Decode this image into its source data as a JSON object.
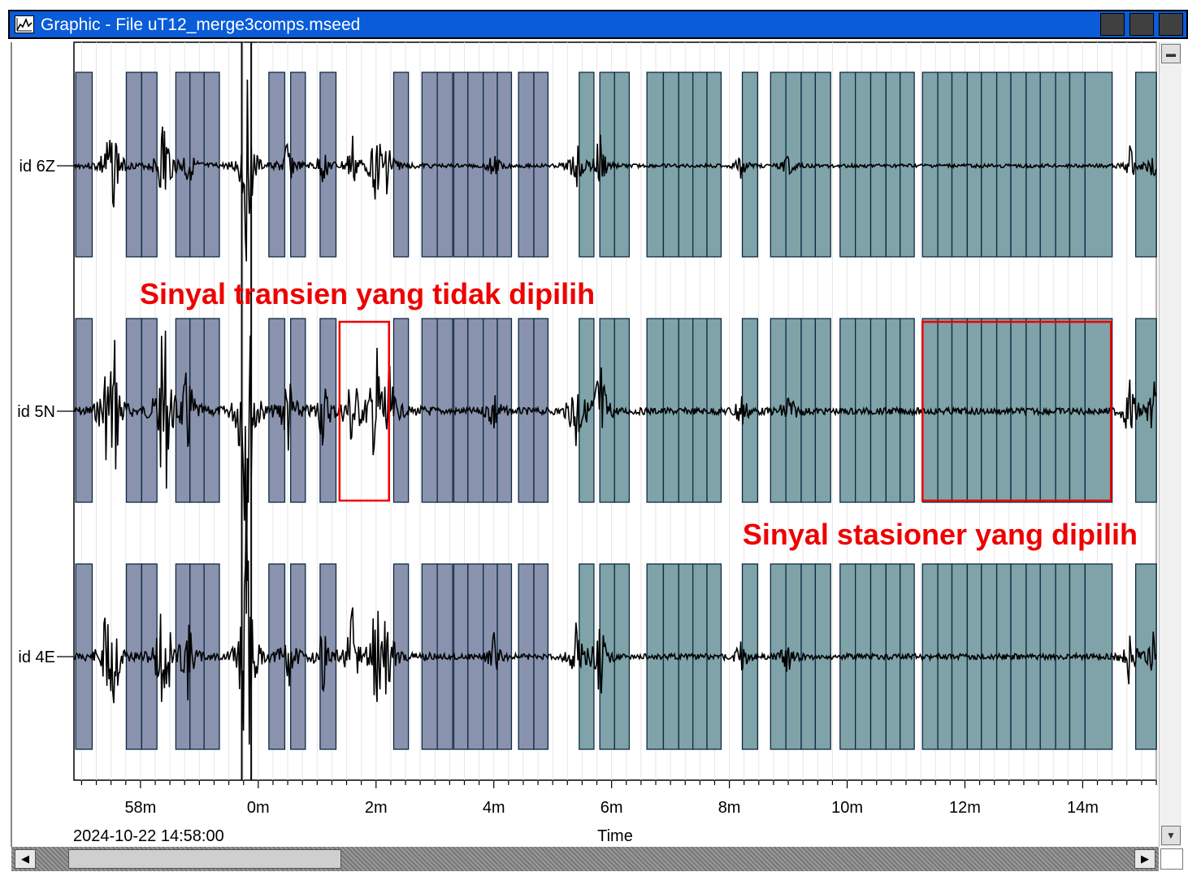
{
  "window": {
    "title": "Graphic - File uT12_merge3comps.mseed"
  },
  "plot": {
    "traces": [
      {
        "label": "id 6Z",
        "amp": 1.0,
        "seed": 3
      },
      {
        "label": "id 5N",
        "amp": 1.9,
        "seed": 7
      },
      {
        "label": "id 4E",
        "amp": 1.6,
        "seed": 11
      }
    ],
    "x_axis": {
      "title": "Time",
      "start_label": "2024-10-22 14:58:00",
      "ticks": [
        "58m",
        "0m",
        "2m",
        "4m",
        "6m",
        "8m",
        "10m",
        "12m",
        "14m"
      ],
      "tick_minutes": [
        -2,
        0,
        2,
        4,
        6,
        8,
        10,
        12,
        14
      ],
      "range_minutes": [
        -3.13,
        15.25
      ]
    },
    "window_colors": {
      "early": "#8a93ae",
      "late": "#7fa3a8",
      "edge": "#0d2a45"
    },
    "time_windows": [
      [
        -3.1,
        -2.82
      ],
      [
        -2.24,
        -1.98
      ],
      [
        -1.98,
        -1.72
      ],
      [
        -1.4,
        -1.16
      ],
      [
        -1.16,
        -0.92
      ],
      [
        -0.92,
        -0.66
      ],
      [
        0.18,
        0.45
      ],
      [
        0.55,
        0.8
      ],
      [
        1.05,
        1.32
      ],
      [
        2.3,
        2.55
      ],
      [
        2.78,
        3.04
      ],
      [
        3.04,
        3.3
      ],
      [
        3.32,
        3.56
      ],
      [
        3.56,
        3.82
      ],
      [
        3.82,
        4.06
      ],
      [
        4.06,
        4.3
      ],
      [
        4.42,
        4.68
      ],
      [
        4.68,
        4.92
      ],
      [
        5.45,
        5.7
      ],
      [
        5.8,
        6.05
      ],
      [
        6.05,
        6.3
      ],
      [
        6.6,
        6.88
      ],
      [
        6.88,
        7.14
      ],
      [
        7.14,
        7.38
      ],
      [
        7.38,
        7.62
      ],
      [
        7.62,
        7.86
      ],
      [
        8.22,
        8.48
      ],
      [
        8.7,
        8.96
      ],
      [
        8.96,
        9.22
      ],
      [
        9.22,
        9.46
      ],
      [
        9.46,
        9.72
      ],
      [
        9.88,
        10.14
      ],
      [
        10.14,
        10.4
      ],
      [
        10.4,
        10.66
      ],
      [
        10.66,
        10.9
      ],
      [
        10.9,
        11.14
      ],
      [
        11.28,
        11.54
      ],
      [
        11.54,
        11.78
      ],
      [
        11.78,
        12.04
      ],
      [
        12.04,
        12.28
      ],
      [
        12.28,
        12.54
      ],
      [
        12.54,
        12.78
      ],
      [
        12.78,
        13.04
      ],
      [
        13.04,
        13.28
      ],
      [
        13.28,
        13.54
      ],
      [
        13.54,
        13.78
      ],
      [
        13.78,
        14.04
      ],
      [
        14.04,
        14.5
      ],
      [
        14.9,
        15.25
      ]
    ],
    "markers_minutes": [
      -0.28,
      -0.12
    ]
  },
  "annotations": [
    {
      "text": "Sinyal transien yang tidak dipilih",
      "box_minutes": [
        1.38,
        2.22
      ],
      "trace": 1
    },
    {
      "text": "Sinyal stasioner yang dipilih",
      "box_minutes": [
        11.28,
        14.48
      ],
      "trace": 1
    }
  ]
}
